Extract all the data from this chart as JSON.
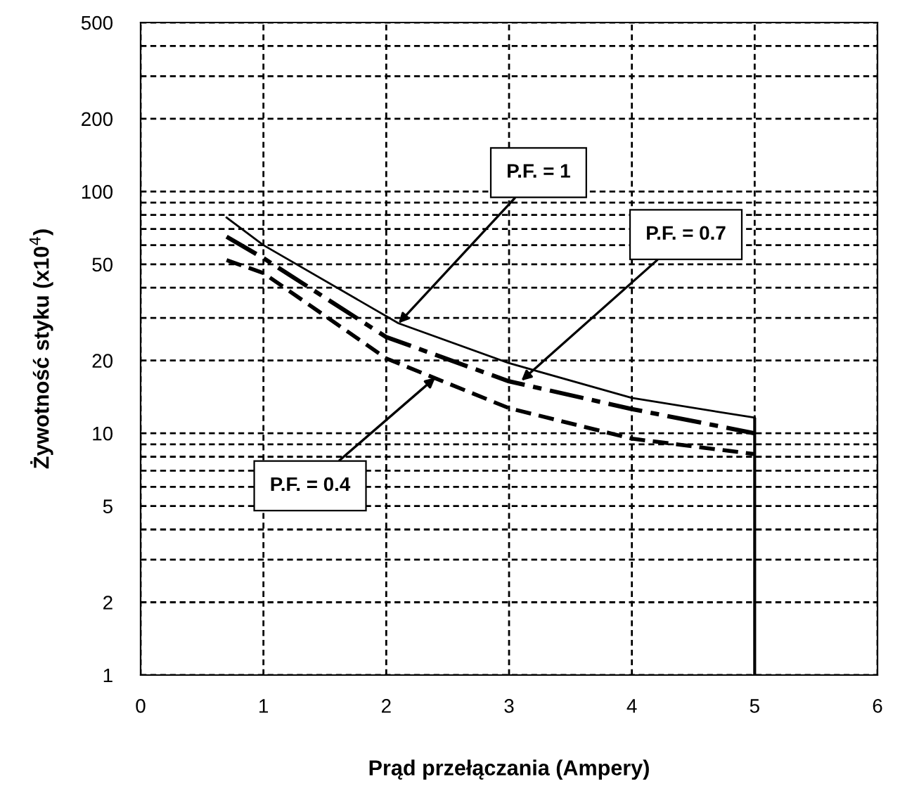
{
  "chart_data": {
    "type": "line",
    "xlabel": "Prąd przełączania (Ampery)",
    "ylabel": "Żywotność styku (x10$^{4}$)",
    "log": "y",
    "xlim": [
      0,
      6
    ],
    "xticks": [
      0,
      1,
      2,
      3,
      4,
      5,
      6
    ],
    "ylim": [
      1,
      500
    ],
    "yticks": [
      1,
      2,
      {
        "value": 3,
        "label": null
      },
      {
        "value": 4,
        "label": null
      },
      5,
      {
        "value": 6,
        "label": null
      },
      {
        "value": 7,
        "label": null
      },
      {
        "value": 8,
        "label": null
      },
      {
        "value": 9,
        "label": null
      },
      10,
      20,
      {
        "value": 30,
        "label": null
      },
      {
        "value": 40,
        "label": null
      },
      50,
      {
        "value": 60,
        "label": null
      },
      {
        "value": 70,
        "label": null
      },
      {
        "value": 80,
        "label": null
      },
      {
        "value": 90,
        "label": null
      },
      100,
      200,
      {
        "value": 300,
        "label": null
      },
      {
        "value": 400,
        "label": null
      },
      500
    ],
    "grid": true,
    "marker": "none",
    "series": [
      {
        "color": "#000000",
        "line_style": "solid",
        "x": [
          0.7,
          1,
          2.1,
          3,
          4,
          5
        ],
        "values": [
          78,
          60,
          28.5,
          19.5,
          14,
          11.6
        ]
      },
      {
        "color": "#000000",
        "line_style": "dashdot",
        "x": [
          0.7,
          1,
          2,
          3,
          4,
          5
        ],
        "values": [
          65,
          53,
          25,
          16.4,
          12.6,
          10
        ]
      },
      {
        "color": "#000000",
        "line_style": "dashed",
        "x": [
          0.7,
          1,
          2,
          3,
          4,
          5
        ],
        "values": [
          52,
          46,
          20.4,
          12.7,
          9.5,
          8.2
        ]
      }
    ],
    "ref_lines": [
      {
        "axis": "x",
        "value": 5,
        "color": "#000000",
        "line_style": "solid"
      }
    ],
    "annotations": [
      {
        "text": "P.F. = 1",
        "x": 2.1,
        "y": 28.5
      },
      {
        "text": "P.F. = 0.7",
        "x": 3.1,
        "y": 16.5
      },
      {
        "text": "P.F. = 0.4",
        "x": 2.4,
        "y": 17
      }
    ]
  }
}
